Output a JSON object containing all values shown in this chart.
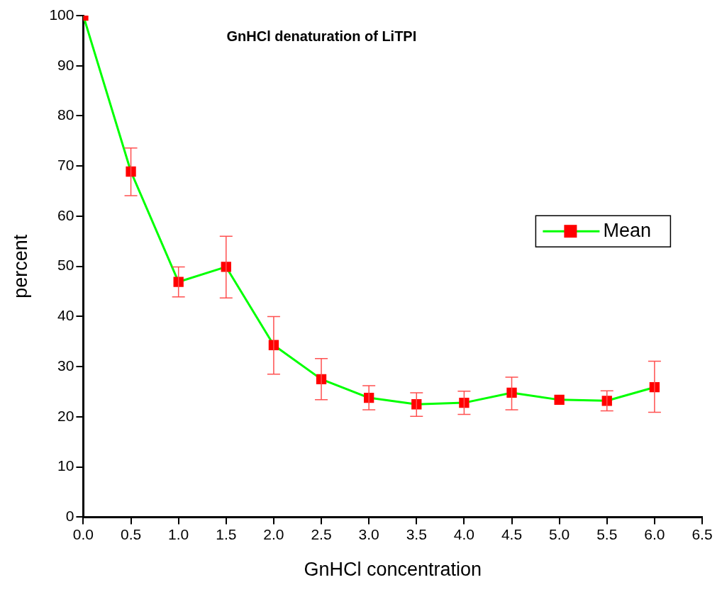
{
  "chart_data": {
    "type": "line",
    "title": "GnHCl denaturation of LiTPI",
    "xlabel": "GnHCl concentration",
    "ylabel": "percent",
    "x": [
      0,
      0.5,
      1,
      1.5,
      2,
      2.5,
      3,
      3.5,
      4,
      4.5,
      5,
      5.5,
      6
    ],
    "series": [
      {
        "name": "Mean",
        "color": "#00ff00",
        "colors": [
          "#ff0000",
          "#ff0000",
          "#ff0000",
          "#ff0000",
          "#ff0000",
          "#ff0000",
          "#ff0000",
          "#ff0000",
          "#ff0000",
          "#ff0000",
          "#ff0000",
          "#ff0000",
          "#ff0000"
        ],
        "values": [
          100,
          68.9,
          46.9,
          49.9,
          34.3,
          27.5,
          23.8,
          22.5,
          22.8,
          24.8,
          23.4,
          23.2,
          25.9
        ],
        "errors": [
          null,
          [
            64.1,
            73.6
          ],
          [
            43.9,
            49.9
          ],
          [
            43.7,
            56.0
          ],
          [
            28.5,
            40.0
          ],
          [
            23.4,
            31.6
          ],
          [
            21.4,
            26.2
          ],
          [
            20.1,
            24.8
          ],
          [
            20.5,
            25.1
          ],
          [
            21.4,
            27.9
          ],
          null,
          [
            21.2,
            25.2
          ],
          [
            20.9,
            31.1
          ]
        ]
      }
    ],
    "xlim": [
      0,
      6.5
    ],
    "xticks": [
      {
        "value": 0,
        "label": "0.0"
      },
      {
        "value": 0.5,
        "label": "0.5"
      },
      {
        "value": 1,
        "label": "1.0"
      },
      {
        "value": 1.5,
        "label": "1.5"
      },
      {
        "value": 2,
        "label": "2.0"
      },
      {
        "value": 2.5,
        "label": "2.5"
      },
      {
        "value": 3,
        "label": "3.0"
      },
      {
        "value": 3.5,
        "label": "3.5"
      },
      {
        "value": 4,
        "label": "4.0"
      },
      {
        "value": 4.5,
        "label": "4.5"
      },
      {
        "value": 5,
        "label": "5.0"
      },
      {
        "value": 5.5,
        "label": "5.5"
      },
      {
        "value": 6,
        "label": "6.0"
      },
      {
        "value": 6.5,
        "label": "6.5"
      }
    ],
    "ylim": [
      0,
      100
    ],
    "yticks": [
      0,
      10,
      20,
      30,
      40,
      50,
      60,
      70,
      80,
      90,
      100
    ],
    "grid": false,
    "legend": "right",
    "marker": "square",
    "line_style": "solid"
  }
}
